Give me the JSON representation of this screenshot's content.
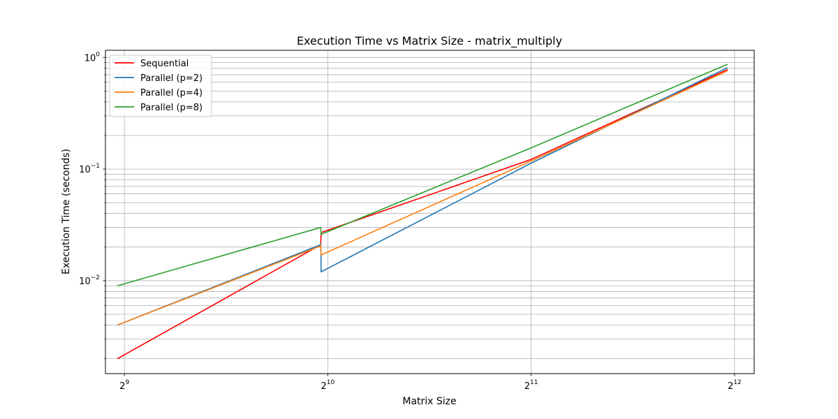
{
  "chart_data": {
    "type": "line",
    "title": "Execution Time vs Matrix Size - matrix_multiply",
    "xlabel": "Matrix Size",
    "ylabel": "Execution Time (seconds)",
    "x_scale": "log2",
    "y_scale": "log10",
    "xlim": [
      480,
      4380
    ],
    "ylim": [
      0.00147,
      1.16
    ],
    "x_ticks": [
      {
        "value": 512,
        "base": "2",
        "exp": "9"
      },
      {
        "value": 1024,
        "base": "2",
        "exp": "10"
      },
      {
        "value": 2048,
        "base": "2",
        "exp": "11"
      },
      {
        "value": 4096,
        "base": "2",
        "exp": "12"
      }
    ],
    "y_ticks": [
      {
        "value": 0.01,
        "base": "10",
        "exp": "−2"
      },
      {
        "value": 0.1,
        "base": "10",
        "exp": "−1"
      },
      {
        "value": 1,
        "base": "10",
        "exp": "0"
      }
    ],
    "grid": true,
    "legend_position": "upper-left",
    "series": [
      {
        "name": "Sequential",
        "color": "#ff0000",
        "x": [
          500,
          1000,
          1000,
          1001,
          2048,
          4000
        ],
        "y": [
          0.002,
          0.021,
          0.0222,
          0.027,
          0.122,
          0.78
        ]
      },
      {
        "name": "Parallel (p=2)",
        "color": "#1f77b4",
        "x": [
          500,
          1000,
          1000,
          1001,
          2048,
          4000
        ],
        "y": [
          0.004,
          0.021,
          0.0215,
          0.012,
          0.113,
          0.81
        ]
      },
      {
        "name": "Parallel (p=4)",
        "color": "#ff7f0e",
        "x": [
          500,
          1000,
          1000,
          1001,
          2048,
          4000
        ],
        "y": [
          0.004,
          0.0205,
          0.0208,
          0.017,
          0.118,
          0.76
        ]
      },
      {
        "name": "Parallel (p=8)",
        "color": "#2ca02c",
        "x": [
          500,
          1000,
          1000,
          1001,
          2048,
          4000
        ],
        "y": [
          0.009,
          0.03,
          0.0295,
          0.026,
          0.155,
          0.87
        ]
      }
    ]
  }
}
